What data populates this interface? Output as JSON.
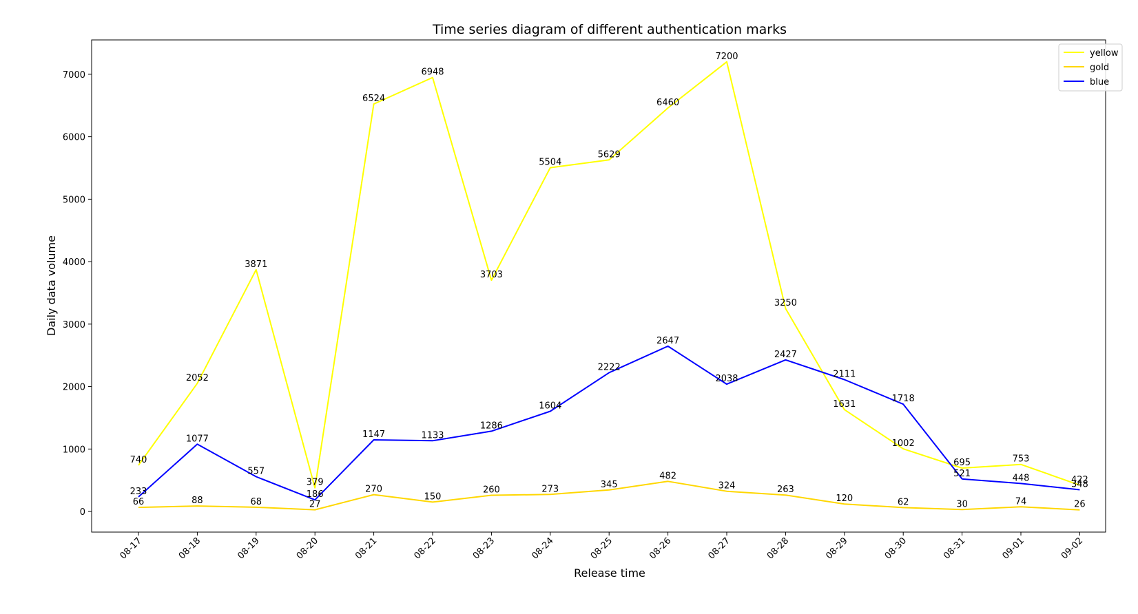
{
  "chart_data": {
    "type": "line",
    "title": "Time series diagram of different authentication marks",
    "xlabel": "Release time",
    "ylabel": "Daily data volume",
    "categories": [
      "08-17",
      "08-18",
      "08-19",
      "08-20",
      "08-21",
      "08-22",
      "08-23",
      "08-24",
      "08-25",
      "08-26",
      "08-27",
      "08-28",
      "08-29",
      "08-30",
      "08-31",
      "09-01",
      "09-02"
    ],
    "ylim": [
      -330,
      7550
    ],
    "yticks": [
      0,
      1000,
      2000,
      3000,
      4000,
      5000,
      6000,
      7000
    ],
    "grid": false,
    "legend_position": "top-right",
    "series": [
      {
        "name": "yellow",
        "color": "#ffff00",
        "values": [
          740,
          2052,
          3871,
          379,
          6524,
          6948,
          3703,
          5504,
          5629,
          6460,
          7200,
          3250,
          1631,
          1002,
          695,
          753,
          422
        ]
      },
      {
        "name": "gold",
        "color": "#ffd700",
        "values": [
          66,
          88,
          68,
          27,
          270,
          150,
          260,
          273,
          345,
          482,
          324,
          263,
          120,
          62,
          30,
          74,
          26
        ]
      },
      {
        "name": "blue",
        "color": "#0000ff",
        "values": [
          233,
          1077,
          557,
          186,
          1147,
          1133,
          1286,
          1604,
          2222,
          2647,
          2038,
          2427,
          2111,
          1718,
          521,
          448,
          348
        ]
      }
    ]
  }
}
